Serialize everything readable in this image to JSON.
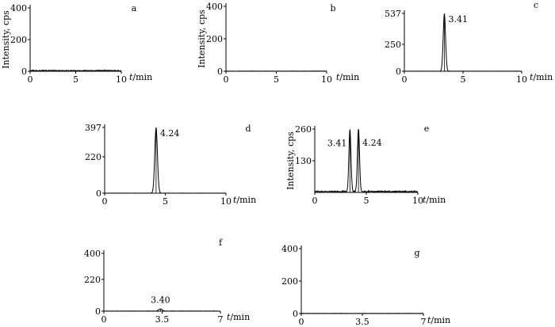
{
  "chart_data": [
    {
      "type": "line",
      "panel_label": "a",
      "ylabel": "Intensity, cps",
      "xlabel": "t/min",
      "xlim": [
        0,
        10
      ],
      "ylim": [
        0,
        400
      ],
      "x_ticks": [
        "0",
        "5",
        "10"
      ],
      "y_ticks": [
        "0",
        "200",
        "400"
      ],
      "peaks": [],
      "peak_labels": [],
      "noise_level": 10
    },
    {
      "type": "line",
      "panel_label": "b",
      "ylabel": "Intensity, cps",
      "xlabel": "t/min",
      "xlim": [
        0,
        10
      ],
      "ylim": [
        0,
        400
      ],
      "x_ticks": [
        "0",
        "5",
        "10"
      ],
      "y_ticks": [
        "0",
        "200",
        "400"
      ],
      "peaks": [],
      "peak_labels": [],
      "noise_level": 2
    },
    {
      "type": "line",
      "panel_label": "c",
      "ylabel": "",
      "xlabel": "t/min",
      "xlim": [
        0,
        10
      ],
      "ylim": [
        0,
        537
      ],
      "x_ticks": [
        "0",
        "5",
        "10"
      ],
      "y_ticks": [
        "0",
        "250",
        "537"
      ],
      "peaks": [
        {
          "x": 3.41,
          "height": 537,
          "width": 0.1
        }
      ],
      "peak_labels": [
        "3.41"
      ],
      "noise_level": 2
    },
    {
      "type": "line",
      "panel_label": "d",
      "ylabel": "",
      "xlabel": "t/min",
      "xlim": [
        0,
        10
      ],
      "ylim": [
        0,
        397
      ],
      "x_ticks": [
        "0",
        "5",
        "10"
      ],
      "y_ticks": [
        "0",
        "220",
        "397"
      ],
      "peaks": [
        {
          "x": 4.24,
          "height": 397,
          "width": 0.11
        }
      ],
      "peak_labels": [
        "4.24"
      ],
      "noise_level": 1
    },
    {
      "type": "line",
      "panel_label": "e",
      "ylabel": "Intensity, cps",
      "xlabel": "t/min",
      "xlim": [
        0,
        10
      ],
      "ylim": [
        0,
        260
      ],
      "x_ticks": [
        "0",
        "5",
        "10"
      ],
      "y_ticks": [
        "130",
        "260"
      ],
      "peaks": [
        {
          "x": 3.41,
          "height": 255,
          "width": 0.1
        },
        {
          "x": 4.24,
          "height": 260,
          "width": 0.1
        }
      ],
      "peak_labels": [
        "3.41",
        "4.24"
      ],
      "noise_level": 9
    },
    {
      "type": "line",
      "panel_label": "f",
      "ylabel": "",
      "xlabel": "t/min",
      "xlim": [
        0,
        7
      ],
      "ylim": [
        0,
        400
      ],
      "x_ticks": [
        "0",
        "3.5",
        "7"
      ],
      "y_ticks": [
        "0",
        "220",
        "400"
      ],
      "peaks": [
        {
          "x": 3.4,
          "height": 15,
          "width": 0.1
        }
      ],
      "peak_labels": [
        "3.40"
      ],
      "noise_level": 2
    },
    {
      "type": "line",
      "panel_label": "g",
      "ylabel": "",
      "xlabel": "t/min",
      "xlim": [
        0,
        7
      ],
      "ylim": [
        0,
        400
      ],
      "x_ticks": [
        "0",
        "3.5",
        "7"
      ],
      "y_ticks": [
        "0",
        "200",
        "400"
      ],
      "peaks": [],
      "peak_labels": [],
      "noise_level": 2
    }
  ]
}
